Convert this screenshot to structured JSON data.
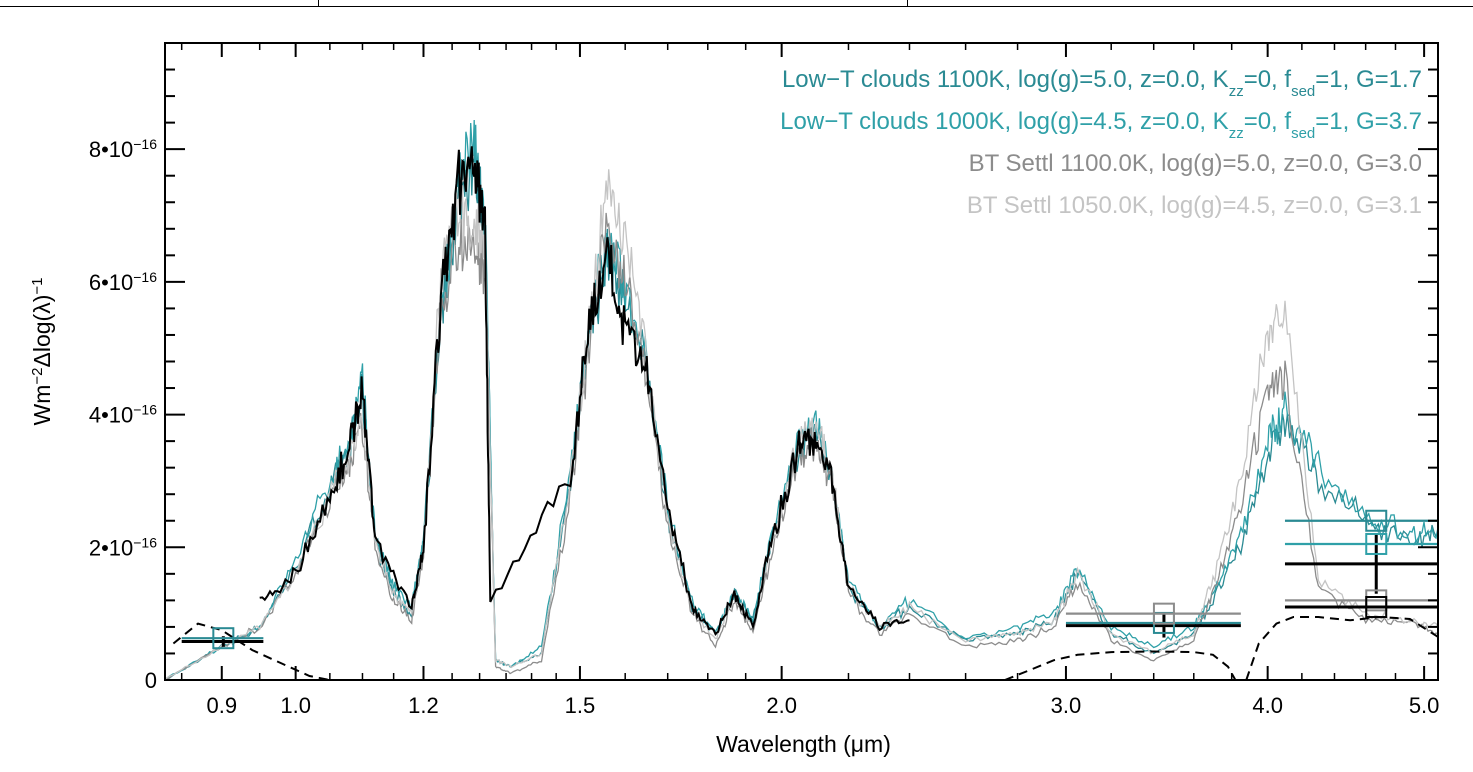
{
  "chart_data": {
    "type": "line",
    "xlabel": "Wavelength (μm)",
    "xlabel_prefix": "Wavelength (",
    "xlabel_unit": "μm",
    "xlabel_suffix": ")",
    "ylabel": "Wm^-2 Δlog(λ)^-1",
    "ylabel_base": "Wm",
    "ylabel_exp": "−2",
    "ylabel_mid": "Δlog(λ)",
    "ylabel_exp2": "−1",
    "x_scale": "log",
    "xlim": [
      0.83,
      5.1
    ],
    "ylim": [
      0,
      9.6e-16
    ],
    "x_ticks": [
      0.9,
      1.0,
      1.2,
      1.5,
      2.0,
      3.0,
      4.0,
      5.0
    ],
    "x_tick_labels": [
      "0.9",
      "1.0",
      "1.2",
      "1.5",
      "2.0",
      "3.0",
      "4.0",
      "5.0"
    ],
    "y_ticks": [
      0,
      2e-16,
      4e-16,
      6e-16,
      8e-16
    ],
    "y_tick_labels": [
      {
        "mant": "0",
        "exp": ""
      },
      {
        "mant": "2•10",
        "exp": "−16"
      },
      {
        "mant": "4•10",
        "exp": "−16"
      },
      {
        "mant": "6•10",
        "exp": "−16"
      },
      {
        "mant": "8•10",
        "exp": "−16"
      }
    ],
    "grid": false,
    "legend_position": "top-right",
    "legend": [
      {
        "text": "Low−T clouds 1100K, log(g)=5.0, z=0.0, K",
        "sub": "zz",
        "text2": "=0,  f",
        "sub2": "sed",
        "text3": "=1, G=1.7",
        "color": "#2a8a93"
      },
      {
        "text": "Low−T clouds 1000K, log(g)=4.5, z=0.0, K",
        "sub": "zz",
        "text2": "=0,  f",
        "sub2": "sed",
        "text3": "=1, G=3.7",
        "color": "#2fa0a8"
      },
      {
        "text": "BT Settl 1100.0K, log(g)=5.0, z=0.0, G=3.0",
        "color": "#8c8c8c"
      },
      {
        "text": "BT Settl 1050.0K, log(g)=4.5, z=0.0, G=3.1",
        "color": "#c4c4c4"
      }
    ],
    "series": [
      {
        "color": "#2a8a93",
        "x": [
          0.83,
          0.9,
          0.95,
          1.0,
          1.05,
          1.08,
          1.1,
          1.12,
          1.15,
          1.18,
          1.2,
          1.23,
          1.26,
          1.29,
          1.31,
          1.33,
          1.36,
          1.42,
          1.48,
          1.52,
          1.56,
          1.6,
          1.65,
          1.7,
          1.76,
          1.82,
          1.87,
          1.92,
          1.97,
          2.05,
          2.1,
          2.15,
          2.2,
          2.3,
          2.4,
          2.6,
          2.8,
          2.95,
          3.05,
          3.2,
          3.4,
          3.6,
          3.7,
          3.85,
          4.0,
          4.1,
          4.3,
          4.6,
          4.9,
          5.1
        ],
        "y": [
          0.0,
          5e-17,
          8e-17,
          1.7e-16,
          2.9e-16,
          3.5e-16,
          4.3e-16,
          2.1e-16,
          1.3e-16,
          1e-16,
          2e-16,
          5.5e-16,
          7.2e-16,
          7.9e-16,
          6.8e-16,
          3e-17,
          2e-17,
          4e-17,
          3e-16,
          5.3e-16,
          6.4e-16,
          5.7e-16,
          4.7e-16,
          2.5e-16,
          1.1e-16,
          7e-17,
          1.3e-16,
          9e-17,
          2.1e-16,
          3.5e-16,
          3.7e-16,
          3e-16,
          1.4e-16,
          8e-17,
          1.1e-16,
          6e-17,
          7e-17,
          9e-17,
          1.6e-16,
          7e-17,
          4e-17,
          7e-17,
          1.2e-16,
          2e-16,
          3.4e-16,
          3.9e-16,
          3e-16,
          2.4e-16,
          2.1e-16,
          2.2e-16
        ]
      },
      {
        "color": "#2fa0a8",
        "x": [
          0.83,
          0.9,
          0.95,
          1.0,
          1.05,
          1.08,
          1.1,
          1.12,
          1.15,
          1.18,
          1.2,
          1.23,
          1.26,
          1.29,
          1.31,
          1.33,
          1.36,
          1.42,
          1.48,
          1.52,
          1.56,
          1.6,
          1.65,
          1.7,
          1.76,
          1.82,
          1.87,
          1.92,
          1.97,
          2.05,
          2.1,
          2.15,
          2.2,
          2.3,
          2.4,
          2.6,
          2.8,
          2.95,
          3.05,
          3.2,
          3.4,
          3.6,
          3.7,
          3.85,
          4.0,
          4.1,
          4.3,
          4.6,
          4.9,
          5.1
        ],
        "y": [
          0.0,
          5e-17,
          8e-17,
          1.8e-16,
          3e-16,
          3.6e-16,
          4.5e-16,
          2.2e-16,
          1.4e-16,
          1.1e-16,
          2.1e-16,
          5.6e-16,
          7.4e-16,
          8e-16,
          7e-16,
          3e-17,
          2e-17,
          5e-17,
          3.1e-16,
          5.4e-16,
          6.6e-16,
          5.9e-16,
          4.9e-16,
          2.6e-16,
          1.2e-16,
          7e-17,
          1.3e-16,
          9e-17,
          2.2e-16,
          3.7e-16,
          3.9e-16,
          3.1e-16,
          1.5e-16,
          8e-17,
          1.2e-16,
          6e-17,
          8e-17,
          1e-16,
          1.7e-16,
          8e-17,
          5e-17,
          8e-17,
          1.3e-16,
          2.2e-16,
          3.6e-16,
          4.1e-16,
          3.2e-16,
          2.5e-16,
          2.2e-16,
          2.3e-16
        ]
      },
      {
        "color": "#8c8c8c",
        "x": [
          0.83,
          0.9,
          0.95,
          1.0,
          1.05,
          1.08,
          1.1,
          1.12,
          1.15,
          1.18,
          1.2,
          1.23,
          1.26,
          1.29,
          1.31,
          1.33,
          1.36,
          1.42,
          1.48,
          1.52,
          1.56,
          1.6,
          1.65,
          1.7,
          1.76,
          1.82,
          1.87,
          1.92,
          1.97,
          2.05,
          2.1,
          2.15,
          2.2,
          2.3,
          2.4,
          2.6,
          2.8,
          2.95,
          3.05,
          3.2,
          3.4,
          3.6,
          3.7,
          3.85,
          4.0,
          4.1,
          4.3,
          4.6,
          4.9,
          5.1
        ],
        "y": [
          0.0,
          5e-17,
          8e-17,
          1.6e-16,
          2.7e-16,
          3.3e-16,
          3.8e-16,
          2e-16,
          1.2e-16,
          9e-17,
          1.9e-16,
          5.7e-16,
          6.7e-16,
          6.4e-16,
          6.3e-16,
          2e-17,
          1e-17,
          3e-17,
          2.8e-16,
          5.1e-16,
          6.8e-16,
          6.1e-16,
          4.5e-16,
          2.3e-16,
          1e-16,
          5e-17,
          1.2e-16,
          7e-17,
          1.9e-16,
          3.4e-16,
          3.6e-16,
          2.9e-16,
          1.3e-16,
          7e-17,
          1e-16,
          5e-17,
          6e-17,
          8e-17,
          1.5e-16,
          6e-17,
          3e-17,
          6e-17,
          1.3e-16,
          2.6e-16,
          4.3e-16,
          4.6e-16,
          1.4e-16,
          9e-17,
          9e-17,
          7e-17
        ]
      },
      {
        "color": "#c4c4c4",
        "x": [
          0.83,
          0.9,
          0.95,
          1.0,
          1.05,
          1.08,
          1.1,
          1.12,
          1.15,
          1.18,
          1.2,
          1.23,
          1.26,
          1.29,
          1.31,
          1.33,
          1.36,
          1.42,
          1.48,
          1.52,
          1.56,
          1.6,
          1.65,
          1.7,
          1.76,
          1.82,
          1.87,
          1.92,
          1.97,
          2.05,
          2.1,
          2.15,
          2.2,
          2.3,
          2.4,
          2.6,
          2.8,
          2.95,
          3.05,
          3.2,
          3.4,
          3.6,
          3.7,
          3.85,
          4.0,
          4.1,
          4.3,
          4.6,
          4.9,
          5.1
        ],
        "y": [
          0.0,
          5e-17,
          8e-17,
          1.6e-16,
          2.8e-16,
          3.4e-16,
          3.9e-16,
          2.1e-16,
          1.3e-16,
          1e-16,
          2e-16,
          6e-16,
          7.1e-16,
          6.8e-16,
          6.6e-16,
          3e-17,
          2e-17,
          4e-17,
          3e-16,
          5.4e-16,
          7.5e-16,
          6.7e-16,
          4.8e-16,
          2.4e-16,
          1.1e-16,
          6e-17,
          1.3e-16,
          8e-17,
          2e-16,
          3.6e-16,
          3.9e-16,
          3.1e-16,
          1.4e-16,
          8e-17,
          1.1e-16,
          6e-17,
          7e-17,
          9e-17,
          1.6e-16,
          7e-17,
          4e-17,
          7e-17,
          1.5e-16,
          3e-16,
          5.2e-16,
          5.6e-16,
          1.5e-16,
          1e-16,
          9e-17,
          8e-17
        ]
      },
      {
        "color": "#000000",
        "x": [
          0.95,
          1.0,
          1.05,
          1.08,
          1.1,
          1.12,
          1.18,
          1.2,
          1.23,
          1.26,
          1.29,
          1.31,
          1.32,
          1.48,
          1.52,
          1.56,
          1.6,
          1.65,
          1.7,
          1.76,
          1.82,
          1.87,
          1.92,
          1.97,
          2.05,
          2.1,
          2.15,
          2.2,
          2.3,
          2.4
        ],
        "y": [
          1.2e-16,
          1.6e-16,
          2.8e-16,
          3.5e-16,
          4.4e-16,
          2.1e-16,
          1.1e-16,
          2e-16,
          5.7e-16,
          7.5e-16,
          7.7e-16,
          6.8e-16,
          1.2e-16,
          3.1e-16,
          5.4e-16,
          6.3e-16,
          5.2e-16,
          4.6e-16,
          2.6e-16,
          1.1e-16,
          7e-17,
          1.3e-16,
          8e-17,
          2.1e-16,
          3.5e-16,
          3.7e-16,
          3e-16,
          1.4e-16,
          8e-17,
          9e-17
        ]
      }
    ],
    "filter_curves": [
      {
        "x": [
          0.84,
          0.87,
          0.9,
          0.94,
          0.98,
          1.02,
          1.05
        ],
        "y": [
          5.5e-17,
          8.5e-17,
          7.5e-17,
          4.5e-17,
          2.5e-17,
          6e-18,
          0.0
        ]
      },
      {
        "x": [
          2.75,
          2.85,
          2.95,
          3.05,
          3.2,
          3.4,
          3.6,
          3.7,
          3.78,
          3.82
        ],
        "y": [
          0.0,
          1.5e-17,
          3e-17,
          3.8e-17,
          4.2e-17,
          4.3e-17,
          4.2e-17,
          3.8e-17,
          2e-17,
          0.0
        ]
      },
      {
        "x": [
          3.88,
          3.95,
          4.05,
          4.15,
          4.3,
          4.5,
          4.7,
          4.9,
          5.1
        ],
        "y": [
          0.0,
          5.5e-17,
          8.5e-17,
          9.5e-17,
          9.5e-17,
          9e-17,
          9.5e-17,
          9.2e-17,
          6.5e-17
        ]
      }
    ],
    "photometry": [
      {
        "x": 0.902,
        "y": 5.8e-17,
        "x0": 0.85,
        "x1": 0.955,
        "yerr": 8e-18,
        "color": "#000000"
      },
      {
        "x": 0.902,
        "y": 6.3e-17,
        "x0": 0.85,
        "x1": 0.955,
        "yerr": 0.0,
        "color": "#2a8a93"
      },
      {
        "x": 3.45,
        "y": 8.2e-17,
        "x0": 3.0,
        "x1": 3.85,
        "yerr": 1.8e-17,
        "color": "#000000"
      },
      {
        "x": 3.45,
        "y": 8.6e-17,
        "x0": 3.0,
        "x1": 3.85,
        "yerr": 0.0,
        "color": "#2a8a93"
      },
      {
        "x": 3.45,
        "y": 1e-16,
        "x0": 3.0,
        "x1": 3.85,
        "yerr": 0.0,
        "color": "#8c8c8c"
      },
      {
        "x": 4.67,
        "y": 1.75e-16,
        "x0": 4.1,
        "x1": 5.1,
        "yerr": 4.5e-17,
        "color": "#000000"
      },
      {
        "x": 4.67,
        "y": 2.4e-16,
        "x0": 4.1,
        "x1": 5.1,
        "yerr": 0.0,
        "color": "#2a8a93"
      },
      {
        "x": 4.67,
        "y": 2.05e-16,
        "x0": 4.1,
        "x1": 5.1,
        "yerr": 0.0,
        "color": "#2fa0a8"
      },
      {
        "x": 4.67,
        "y": 1.2e-16,
        "x0": 4.1,
        "x1": 5.1,
        "yerr": 0.0,
        "color": "#8c8c8c"
      },
      {
        "x": 4.67,
        "y": 1.1e-16,
        "x0": 4.1,
        "x1": 5.1,
        "yerr": 0.0,
        "color": "#000000"
      }
    ]
  }
}
